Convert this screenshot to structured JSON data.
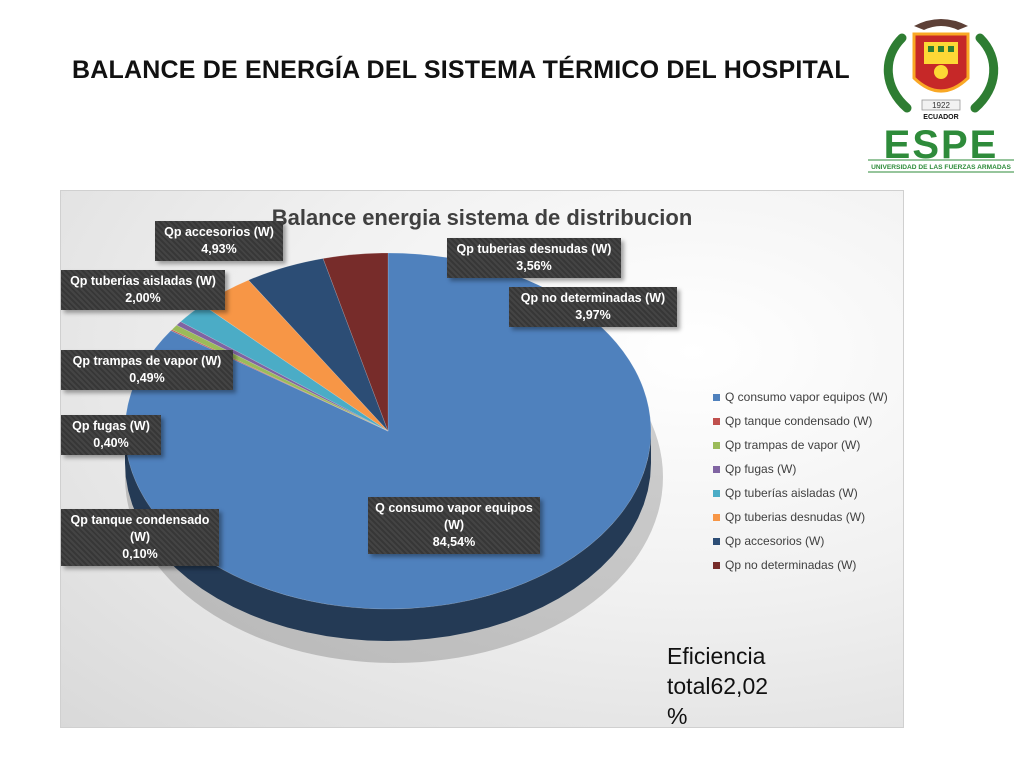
{
  "slide": {
    "title": "BALANCE DE ENERGÍA DEL SISTEMA TÉRMICO DEL HOSPITAL",
    "efficiency_note": "Eficiencia total62,02 %"
  },
  "logo": {
    "year": "1922",
    "country": "ECUADOR",
    "name": "ESPE",
    "subtitle": "UNIVERSIDAD DE LAS FUERZAS ARMADAS"
  },
  "chart_data": {
    "type": "pie",
    "title": "Balance energia sistema de distribucion",
    "legend_position": "right",
    "categories": [
      "Q consumo vapor equipos (W)",
      "Qp tanque condensado (W)",
      "Qp trampas de vapor (W)",
      "Qp fugas (W)",
      "Qp tuberías aisladas (W)",
      "Qp tuberias desnudas (W)",
      "Qp accesorios (W)",
      "Qp no determinadas (W)"
    ],
    "values": [
      84.54,
      0.1,
      0.49,
      0.4,
      2.0,
      3.56,
      4.93,
      3.97
    ],
    "colors": [
      "#4F81BD",
      "#C0504D",
      "#9BBB59",
      "#8064A2",
      "#4BACC6",
      "#F79646",
      "#2C4D75",
      "#772C2A"
    ],
    "data_labels": [
      {
        "name": "Q consumo vapor equipos (W)",
        "value": "84,54%"
      },
      {
        "name": "Qp tanque condensado (W)",
        "value": "0,10%"
      },
      {
        "name": "Qp trampas de vapor (W)",
        "value": "0,49%"
      },
      {
        "name": "Qp fugas (W)",
        "value": "0,40%"
      },
      {
        "name": "Qp tuberías aisladas (W)",
        "value": "2,00%"
      },
      {
        "name": "Qp tuberias desnudas (W)",
        "value": "3,56%"
      },
      {
        "name": "Qp accesorios (W)",
        "value": "4,93%"
      },
      {
        "name": "Qp no determinadas (W)",
        "value": "3,97%"
      }
    ]
  }
}
